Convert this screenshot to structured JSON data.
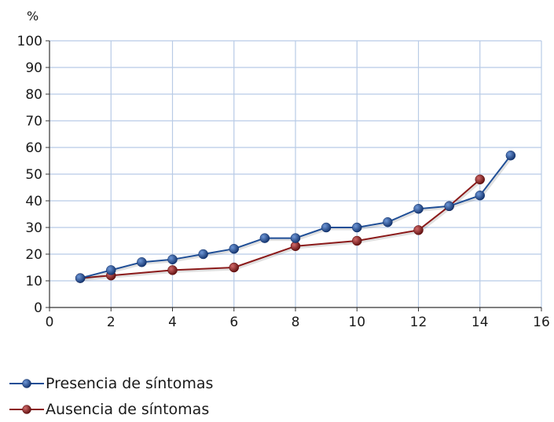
{
  "chart_data": {
    "type": "line",
    "ylabel": "%",
    "xlabel": "",
    "xlim": [
      0,
      16
    ],
    "ylim": [
      0,
      100
    ],
    "x_ticks": [
      0,
      2,
      4,
      6,
      8,
      10,
      12,
      14,
      16
    ],
    "y_ticks": [
      0,
      10,
      20,
      30,
      40,
      50,
      60,
      70,
      80,
      90,
      100
    ],
    "grid": true,
    "legend_position": "bottom-left",
    "series": [
      {
        "name": "Presencia de síntomas",
        "color": "#1f4e96",
        "x": [
          1,
          2,
          3,
          4,
          5,
          6,
          7,
          8,
          9,
          10,
          11,
          12,
          13,
          14,
          15
        ],
        "y": [
          11,
          14,
          17,
          18,
          20,
          22,
          26,
          26,
          30,
          30,
          32,
          37,
          38,
          42,
          57
        ]
      },
      {
        "name": "Ausencia de síntomas",
        "color": "#8b1a1a",
        "x": [
          1,
          2,
          4,
          6,
          8,
          10,
          12,
          13,
          14
        ],
        "y": [
          11,
          12,
          14,
          15,
          23,
          25,
          29,
          38,
          48
        ]
      }
    ]
  }
}
